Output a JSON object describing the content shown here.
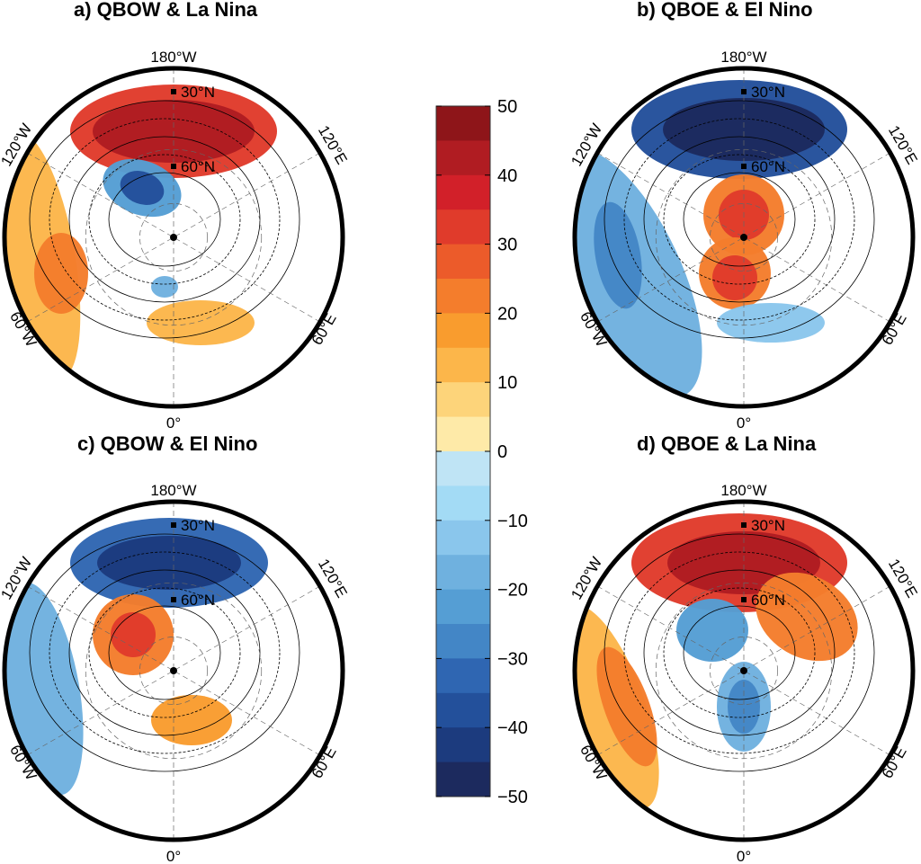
{
  "panels": [
    {
      "title": "a) QBOW & La Nina",
      "labels": {
        "top": "180°W",
        "left_upper": "120°W",
        "right_upper": "120°E",
        "left_lower": "60°W",
        "right_lower": "60°E",
        "bottom": "0°",
        "lat30": "30°N",
        "lat60": "60°N"
      }
    },
    {
      "title": "b) QBOE & El Nino",
      "labels": {
        "top": "180°W",
        "left_upper": "120°W",
        "right_upper": "120°E",
        "left_lower": "60°W",
        "right_lower": "60°E",
        "bottom": "0°",
        "lat30": "30°N",
        "lat60": "60°N"
      }
    },
    {
      "title": "c) QBOW & El Nino",
      "labels": {
        "top": "180°W",
        "left_upper": "120°W",
        "right_upper": "120°E",
        "left_lower": "60°W",
        "right_lower": "60°E",
        "bottom": "0°",
        "lat30": "30°N",
        "lat60": "60°N"
      }
    },
    {
      "title": "d) QBOE & La Nina",
      "labels": {
        "top": "180°W",
        "left_upper": "120°W",
        "right_upper": "120°E",
        "left_lower": "60°W",
        "right_lower": "60°E",
        "bottom": "0°",
        "lat30": "30°N",
        "lat60": "60°N"
      }
    }
  ],
  "colorbar": {
    "min": -50,
    "max": 50,
    "step": 5,
    "ticks": [
      "50",
      "40",
      "30",
      "20",
      "10",
      "0",
      "−10",
      "−20",
      "−30",
      "−40",
      "−50"
    ],
    "colors_top_to_bottom": [
      "#8e1519",
      "#b01c22",
      "#d22029",
      "#e03b2b",
      "#ec5b2a",
      "#f47d2c",
      "#f99c2e",
      "#fcb64a",
      "#fdd47a",
      "#feeaa8",
      "#bfe4f5",
      "#a3dbf5",
      "#8ac6ec",
      "#6fb1df",
      "#559ed4",
      "#4386c6",
      "#2f66b2",
      "#23509b",
      "#1c3b7e",
      "#1c2a5e"
    ]
  }
}
